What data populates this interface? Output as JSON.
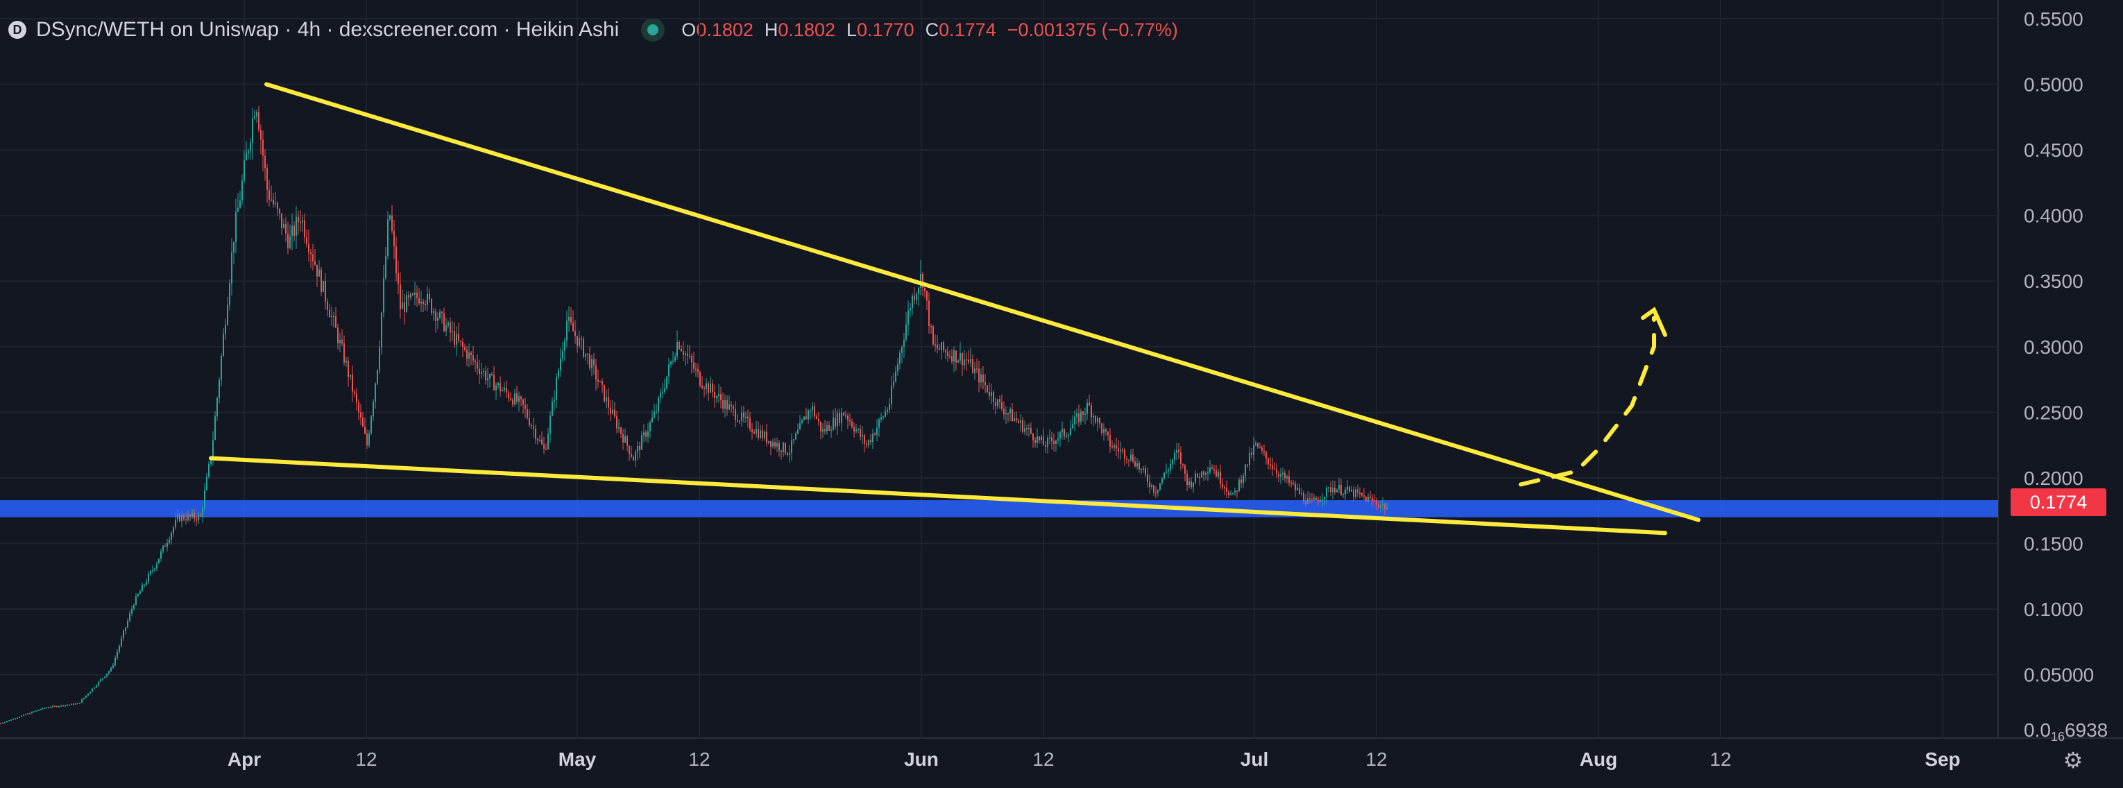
{
  "legend": {
    "logo_glyph": "D",
    "title": "DSync/WETH on Uniswap · 4h · dexscreener.com · Heikin Ashi",
    "open_label": "O",
    "open_value": "0.1802",
    "high_label": "H",
    "high_value": "0.1802",
    "low_label": "L",
    "low_value": "0.1770",
    "close_label": "C",
    "close_value": "0.1774",
    "change": "−0.001375 (−0.77%)"
  },
  "price_tag": "0.1774",
  "settings_icon": "gear-icon",
  "colors": {
    "background": "#131722",
    "up": "#26a69a",
    "down": "#ef5350",
    "trendline": "#ffeb3b",
    "support_band": "#2962ff",
    "price_tag": "#f23645"
  },
  "chart_data": {
    "type": "candlestick",
    "style": "Heikin Ashi",
    "interval": "4h",
    "pair": "DSync/WETH",
    "x_range": [
      "2024-03-10",
      "2024-09-06"
    ],
    "y_range": [
      0.0016938,
      0.56
    ],
    "y_ticks": [
      "0.5500",
      "0.5000",
      "0.4500",
      "0.4000",
      "0.3500",
      "0.3000",
      "0.2500",
      "0.2000",
      "0.1500",
      "0.1000",
      "0.05000"
    ],
    "y_bottom_label": {
      "main": "0.0",
      "sub": "16",
      "tail": "6938"
    },
    "x_ticks": [
      {
        "label": "Apr",
        "date": "2024-04-01",
        "major": true
      },
      {
        "label": "12",
        "date": "2024-04-12",
        "major": false
      },
      {
        "label": "May",
        "date": "2024-05-01",
        "major": true
      },
      {
        "label": "12",
        "date": "2024-05-12",
        "major": false
      },
      {
        "label": "Jun",
        "date": "2024-06-01",
        "major": true
      },
      {
        "label": "12",
        "date": "2024-06-12",
        "major": false
      },
      {
        "label": "Jul",
        "date": "2024-07-01",
        "major": true
      },
      {
        "label": "12",
        "date": "2024-07-12",
        "major": false
      },
      {
        "label": "Aug",
        "date": "2024-08-01",
        "major": true
      },
      {
        "label": "12",
        "date": "2024-08-12",
        "major": false
      },
      {
        "label": "Sep",
        "date": "2024-09-01",
        "major": true
      }
    ],
    "price_path": [
      [
        "2024-03-10",
        0.013
      ],
      [
        "2024-03-14",
        0.025
      ],
      [
        "2024-03-17",
        0.028
      ],
      [
        "2024-03-20",
        0.055
      ],
      [
        "2024-03-22",
        0.105
      ],
      [
        "2024-03-24",
        0.135
      ],
      [
        "2024-03-26",
        0.17
      ],
      [
        "2024-03-28",
        0.17
      ],
      [
        "2024-03-29",
        0.22
      ],
      [
        "2024-03-31",
        0.385
      ],
      [
        "2024-04-02",
        0.49
      ],
      [
        "2024-04-03",
        0.42
      ],
      [
        "2024-04-05",
        0.38
      ],
      [
        "2024-04-06",
        0.4
      ],
      [
        "2024-04-08",
        0.345
      ],
      [
        "2024-04-10",
        0.29
      ],
      [
        "2024-04-12",
        0.225
      ],
      [
        "2024-04-13",
        0.29
      ],
      [
        "2024-04-14",
        0.405
      ],
      [
        "2024-04-15",
        0.33
      ],
      [
        "2024-04-17",
        0.34
      ],
      [
        "2024-04-20",
        0.305
      ],
      [
        "2024-04-23",
        0.275
      ],
      [
        "2024-04-26",
        0.255
      ],
      [
        "2024-04-28",
        0.22
      ],
      [
        "2024-04-30",
        0.32
      ],
      [
        "2024-05-02",
        0.29
      ],
      [
        "2024-05-04",
        0.25
      ],
      [
        "2024-05-06",
        0.215
      ],
      [
        "2024-05-08",
        0.25
      ],
      [
        "2024-05-10",
        0.305
      ],
      [
        "2024-05-12",
        0.275
      ],
      [
        "2024-05-15",
        0.25
      ],
      [
        "2024-05-18",
        0.23
      ],
      [
        "2024-05-20",
        0.22
      ],
      [
        "2024-05-22",
        0.255
      ],
      [
        "2024-05-23",
        0.235
      ],
      [
        "2024-05-25",
        0.25
      ],
      [
        "2024-05-27",
        0.225
      ],
      [
        "2024-05-29",
        0.255
      ],
      [
        "2024-05-31",
        0.335
      ],
      [
        "2024-06-01",
        0.355
      ],
      [
        "2024-06-02",
        0.3
      ],
      [
        "2024-06-05",
        0.29
      ],
      [
        "2024-06-08",
        0.255
      ],
      [
        "2024-06-10",
        0.24
      ],
      [
        "2024-06-12",
        0.225
      ],
      [
        "2024-06-14",
        0.235
      ],
      [
        "2024-06-16",
        0.255
      ],
      [
        "2024-06-18",
        0.225
      ],
      [
        "2024-06-20",
        0.215
      ],
      [
        "2024-06-22",
        0.19
      ],
      [
        "2024-06-24",
        0.22
      ],
      [
        "2024-06-25",
        0.195
      ],
      [
        "2024-06-27",
        0.21
      ],
      [
        "2024-06-29",
        0.185
      ],
      [
        "2024-07-01",
        0.225
      ],
      [
        "2024-07-03",
        0.205
      ],
      [
        "2024-07-06",
        0.18
      ],
      [
        "2024-07-08",
        0.193
      ],
      [
        "2024-07-10",
        0.188
      ],
      [
        "2024-07-13",
        0.177
      ]
    ],
    "annotations": {
      "upper_trendline": [
        [
          "2024-04-03",
          0.5
        ],
        [
          "2024-08-10",
          0.168
        ]
      ],
      "lower_trendline": [
        [
          "2024-03-29",
          0.215
        ],
        [
          "2024-08-07",
          0.158
        ]
      ],
      "support_band": [
        0.17,
        0.183
      ],
      "projection_dashed": [
        [
          "2024-07-25",
          0.195
        ],
        [
          "2024-07-30",
          0.205
        ],
        [
          "2024-08-01",
          0.222
        ],
        [
          "2024-08-04",
          0.255
        ],
        [
          "2024-08-06",
          0.3
        ],
        [
          "2024-08-06",
          0.322
        ]
      ],
      "projection_arrowhead": [
        [
          "2024-08-05",
          0.322
        ],
        [
          "2024-08-06",
          0.328
        ],
        [
          "2024-08-07",
          0.309
        ]
      ]
    }
  }
}
